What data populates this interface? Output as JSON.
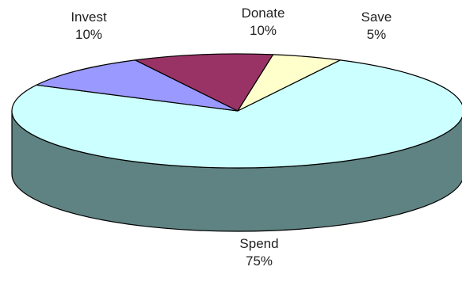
{
  "chart_data": {
    "type": "pie",
    "style": "3d",
    "title": "",
    "start_angle_deg": 297,
    "direction": "clockwise",
    "slices": [
      {
        "label": "Spend",
        "value": 75,
        "value_label": "75%",
        "color": "#ccffff",
        "side_color": "#5f8282"
      },
      {
        "label": "Invest",
        "value": 10,
        "value_label": "10%",
        "color": "#9999ff",
        "side_color": "#5a5a99"
      },
      {
        "label": "Donate",
        "value": 10,
        "value_label": "10%",
        "color": "#993366",
        "side_color": "#5c1f3d"
      },
      {
        "label": "Save",
        "value": 5,
        "value_label": "5%",
        "color": "#ffffcc",
        "side_color": "#99997a"
      }
    ],
    "label_placement": "outside",
    "edge_color": "#000000"
  }
}
